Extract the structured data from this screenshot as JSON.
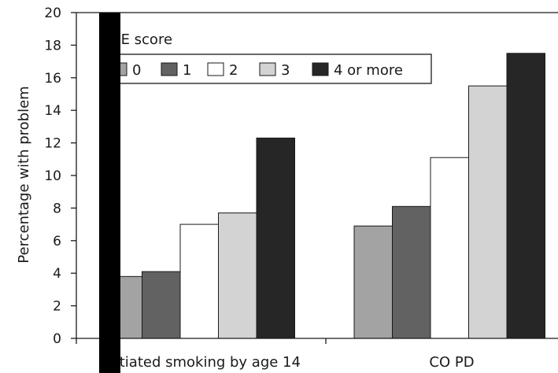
{
  "chart_data": {
    "type": "bar",
    "title": "",
    "xlabel": "",
    "ylabel": "Percentage with problem",
    "ylim": [
      0,
      20
    ],
    "yticks": [
      0,
      2,
      4,
      6,
      8,
      10,
      12,
      14,
      16,
      18,
      20
    ],
    "categories": [
      "Initiated smoking by age 14",
      "CO PD"
    ],
    "legend": {
      "title": "ACE score",
      "placement": "top-left"
    },
    "series": [
      {
        "name": "0",
        "color": "#a3a3a3",
        "values": [
          3.8,
          6.9
        ]
      },
      {
        "name": "1",
        "color": "#626262",
        "values": [
          4.1,
          8.1
        ]
      },
      {
        "name": "2",
        "color": "#ffffff",
        "values": [
          7.0,
          11.1
        ]
      },
      {
        "name": "3",
        "color": "#d3d3d3",
        "values": [
          7.7,
          15.5
        ]
      },
      {
        "name": "4 or more",
        "color": "#262626",
        "values": [
          12.3,
          17.5
        ]
      }
    ],
    "grid": false
  }
}
